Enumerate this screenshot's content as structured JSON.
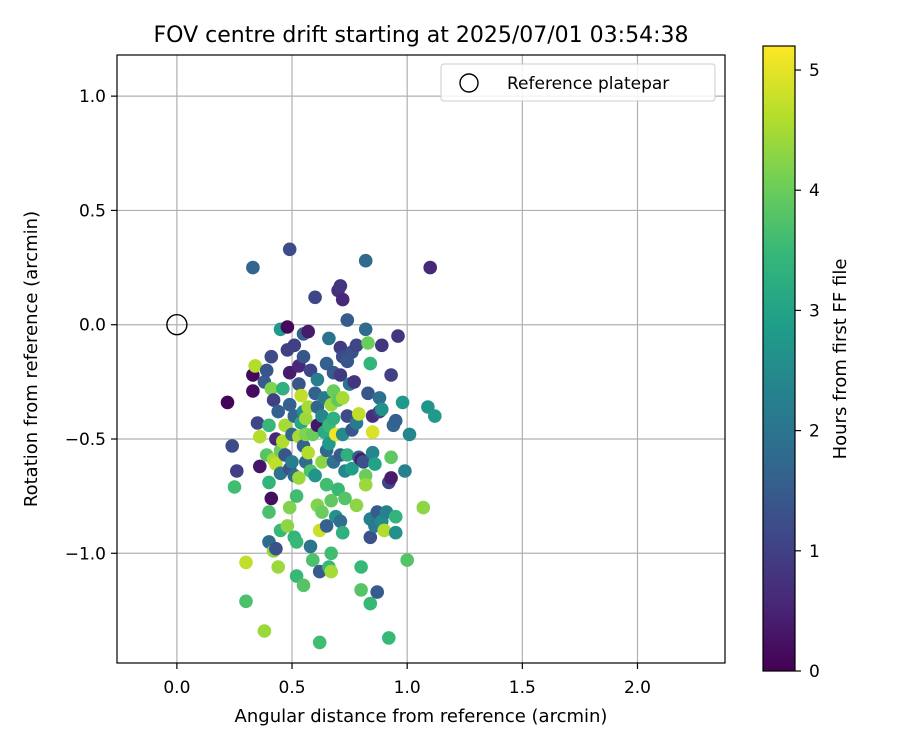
{
  "chart_data": {
    "type": "scatter",
    "title": "FOV centre drift starting at 2025/07/01 03:54:38",
    "xlabel": "Angular distance from reference (arcmin)",
    "ylabel": "Rotation from reference (arcmin)",
    "xlim": [
      -0.26,
      2.38
    ],
    "ylim": [
      -1.48,
      1.18
    ],
    "x_ticks": [
      0.0,
      0.5,
      1.0,
      1.5,
      2.0
    ],
    "x_tick_labels": [
      "0.0",
      "0.5",
      "1.0",
      "1.5",
      "2.0"
    ],
    "y_ticks": [
      -1.0,
      -0.5,
      0.0,
      0.5,
      1.0
    ],
    "y_tick_labels": [
      "−1.0",
      "−0.5",
      "0.0",
      "0.5",
      "1.0"
    ],
    "grid": true,
    "legend": {
      "position": "top-right",
      "entries": [
        {
          "label": "Reference platepar",
          "marker": "open-circle"
        }
      ]
    },
    "reference_point": {
      "x": 0.0,
      "y": 0.0
    },
    "colorbar": {
      "label": "Hours from first FF file",
      "colormap": "viridis",
      "range": [
        0,
        5.2
      ],
      "ticks": [
        0,
        1,
        2,
        3,
        4,
        5
      ],
      "tick_labels": [
        "0",
        "1",
        "2",
        "3",
        "4",
        "5"
      ],
      "colors": [
        "#440154",
        "#482878",
        "#3e4989",
        "#31688e",
        "#26828e",
        "#1f9e89",
        "#35b779",
        "#6ece58",
        "#b5de2b",
        "#fde725"
      ]
    },
    "points": [
      {
        "x": 0.22,
        "y": -0.34,
        "c": 0.05
      },
      {
        "x": 0.24,
        "y": -0.53,
        "c": 1.2
      },
      {
        "x": 0.26,
        "y": -0.64,
        "c": 1.0
      },
      {
        "x": 0.25,
        "y": -0.71,
        "c": 3.6
      },
      {
        "x": 0.3,
        "y": -1.04,
        "c": 4.7
      },
      {
        "x": 0.3,
        "y": -1.21,
        "c": 3.7
      },
      {
        "x": 0.33,
        "y": 0.25,
        "c": 1.7
      },
      {
        "x": 0.33,
        "y": -0.22,
        "c": 0.1
      },
      {
        "x": 0.33,
        "y": -0.29,
        "c": 0.15
      },
      {
        "x": 0.34,
        "y": -0.18,
        "c": 4.6
      },
      {
        "x": 0.35,
        "y": -0.43,
        "c": 1.1
      },
      {
        "x": 0.36,
        "y": -0.49,
        "c": 4.6
      },
      {
        "x": 0.36,
        "y": -0.62,
        "c": 0.3
      },
      {
        "x": 0.38,
        "y": -1.34,
        "c": 4.4
      },
      {
        "x": 0.38,
        "y": -0.25,
        "c": 1.5
      },
      {
        "x": 0.39,
        "y": -0.2,
        "c": 1.4
      },
      {
        "x": 0.39,
        "y": -0.57,
        "c": 3.8
      },
      {
        "x": 0.4,
        "y": -0.44,
        "c": 3.5
      },
      {
        "x": 0.4,
        "y": -0.69,
        "c": 3.4
      },
      {
        "x": 0.4,
        "y": -0.82,
        "c": 3.7
      },
      {
        "x": 0.4,
        "y": -0.95,
        "c": 1.8
      },
      {
        "x": 0.41,
        "y": -0.14,
        "c": 1.2
      },
      {
        "x": 0.41,
        "y": -0.28,
        "c": 4.2
      },
      {
        "x": 0.41,
        "y": -0.76,
        "c": 0.2
      },
      {
        "x": 0.42,
        "y": -0.33,
        "c": 1.0
      },
      {
        "x": 0.42,
        "y": -0.59,
        "c": 4.5
      },
      {
        "x": 0.42,
        "y": -0.99,
        "c": 4.3
      },
      {
        "x": 0.43,
        "y": -0.5,
        "c": 0.6
      },
      {
        "x": 0.43,
        "y": -0.61,
        "c": 4.7
      },
      {
        "x": 0.43,
        "y": -0.98,
        "c": 1.3
      },
      {
        "x": 0.44,
        "y": -0.38,
        "c": 1.6
      },
      {
        "x": 0.44,
        "y": -1.06,
        "c": 4.4
      },
      {
        "x": 0.45,
        "y": -0.02,
        "c": 2.8
      },
      {
        "x": 0.45,
        "y": -0.55,
        "c": 4.0
      },
      {
        "x": 0.45,
        "y": -0.65,
        "c": 2.0
      },
      {
        "x": 0.45,
        "y": -0.9,
        "c": 3.5
      },
      {
        "x": 0.46,
        "y": -0.28,
        "c": 3.3
      },
      {
        "x": 0.46,
        "y": -0.51,
        "c": 4.6
      },
      {
        "x": 0.47,
        "y": -0.44,
        "c": 4.5
      },
      {
        "x": 0.47,
        "y": -0.57,
        "c": 1.4
      },
      {
        "x": 0.48,
        "y": -0.01,
        "c": 0.1
      },
      {
        "x": 0.48,
        "y": -0.11,
        "c": 1.0
      },
      {
        "x": 0.48,
        "y": -0.88,
        "c": 4.3
      },
      {
        "x": 0.49,
        "y": 0.33,
        "c": 1.2
      },
      {
        "x": 0.49,
        "y": -0.21,
        "c": 0.4
      },
      {
        "x": 0.49,
        "y": -0.35,
        "c": 1.6
      },
      {
        "x": 0.49,
        "y": -0.63,
        "c": 1.3
      },
      {
        "x": 0.49,
        "y": -0.8,
        "c": 4.2
      },
      {
        "x": 0.5,
        "y": -0.48,
        "c": 1.7
      },
      {
        "x": 0.5,
        "y": -0.6,
        "c": 2.2
      },
      {
        "x": 0.51,
        "y": -0.09,
        "c": 1.0
      },
      {
        "x": 0.51,
        "y": -0.4,
        "c": 1.7
      },
      {
        "x": 0.51,
        "y": -0.66,
        "c": 1.8
      },
      {
        "x": 0.51,
        "y": -0.93,
        "c": 3.4
      },
      {
        "x": 0.52,
        "y": -0.75,
        "c": 3.6
      },
      {
        "x": 0.52,
        "y": -0.95,
        "c": 3.5
      },
      {
        "x": 0.52,
        "y": -1.1,
        "c": 3.5
      },
      {
        "x": 0.53,
        "y": -0.18,
        "c": 0.6
      },
      {
        "x": 0.53,
        "y": -0.26,
        "c": 1.4
      },
      {
        "x": 0.53,
        "y": -0.49,
        "c": 4.5
      },
      {
        "x": 0.53,
        "y": -0.67,
        "c": 4.4
      },
      {
        "x": 0.54,
        "y": -0.31,
        "c": 4.7
      },
      {
        "x": 0.54,
        "y": -0.43,
        "c": 3.1
      },
      {
        "x": 0.55,
        "y": -0.04,
        "c": 1.6
      },
      {
        "x": 0.55,
        "y": -0.14,
        "c": 1.4
      },
      {
        "x": 0.55,
        "y": -0.38,
        "c": 2.6
      },
      {
        "x": 0.55,
        "y": -0.53,
        "c": 1.6
      },
      {
        "x": 0.55,
        "y": -1.14,
        "c": 3.8
      },
      {
        "x": 0.56,
        "y": -0.41,
        "c": 4.4
      },
      {
        "x": 0.56,
        "y": -0.48,
        "c": 4.2
      },
      {
        "x": 0.56,
        "y": -0.6,
        "c": 1.8
      },
      {
        "x": 0.57,
        "y": -0.03,
        "c": 0.4
      },
      {
        "x": 0.57,
        "y": -0.36,
        "c": 4.5
      },
      {
        "x": 0.57,
        "y": -0.56,
        "c": 4.6
      },
      {
        "x": 0.58,
        "y": -0.2,
        "c": 1.1
      },
      {
        "x": 0.58,
        "y": -0.64,
        "c": 3.7
      },
      {
        "x": 0.58,
        "y": -0.97,
        "c": 2.0
      },
      {
        "x": 0.59,
        "y": -0.48,
        "c": 4.0
      },
      {
        "x": 0.59,
        "y": -1.03,
        "c": 3.7
      },
      {
        "x": 0.6,
        "y": 0.12,
        "c": 1.1
      },
      {
        "x": 0.6,
        "y": -0.3,
        "c": 1.6
      },
      {
        "x": 0.6,
        "y": -0.66,
        "c": 2.7
      },
      {
        "x": 0.61,
        "y": -0.24,
        "c": 2.2
      },
      {
        "x": 0.61,
        "y": -0.36,
        "c": 1.7
      },
      {
        "x": 0.61,
        "y": -0.44,
        "c": 0.3
      },
      {
        "x": 0.61,
        "y": -0.79,
        "c": 4.2
      },
      {
        "x": 0.62,
        "y": -0.9,
        "c": 4.8
      },
      {
        "x": 0.62,
        "y": -1.08,
        "c": 1.5
      },
      {
        "x": 0.62,
        "y": -1.39,
        "c": 3.6
      },
      {
        "x": 0.63,
        "y": -0.4,
        "c": 2.4
      },
      {
        "x": 0.63,
        "y": -0.6,
        "c": 4.3
      },
      {
        "x": 0.63,
        "y": -0.82,
        "c": 4.0
      },
      {
        "x": 0.64,
        "y": -0.32,
        "c": 2.1
      },
      {
        "x": 0.64,
        "y": -0.47,
        "c": 3.2
      },
      {
        "x": 0.65,
        "y": -0.17,
        "c": 1.6
      },
      {
        "x": 0.65,
        "y": -0.55,
        "c": 1.8
      },
      {
        "x": 0.65,
        "y": -0.7,
        "c": 3.6
      },
      {
        "x": 0.65,
        "y": -0.88,
        "c": 1.6
      },
      {
        "x": 0.66,
        "y": -0.06,
        "c": 2.0
      },
      {
        "x": 0.66,
        "y": -0.44,
        "c": 3.5
      },
      {
        "x": 0.66,
        "y": -0.52,
        "c": 2.8
      },
      {
        "x": 0.66,
        "y": -1.06,
        "c": 3.5
      },
      {
        "x": 0.67,
        "y": -0.35,
        "c": 4.4
      },
      {
        "x": 0.67,
        "y": -0.77,
        "c": 3.9
      },
      {
        "x": 0.67,
        "y": -1.0,
        "c": 3.6
      },
      {
        "x": 0.67,
        "y": -1.08,
        "c": 4.5
      },
      {
        "x": 0.68,
        "y": -0.21,
        "c": 1.5
      },
      {
        "x": 0.68,
        "y": -0.29,
        "c": 4.0
      },
      {
        "x": 0.68,
        "y": -0.41,
        "c": 3.3
      },
      {
        "x": 0.68,
        "y": -0.6,
        "c": 1.9
      },
      {
        "x": 0.69,
        "y": -0.48,
        "c": 5.1
      },
      {
        "x": 0.69,
        "y": -0.84,
        "c": 2.6
      },
      {
        "x": 0.7,
        "y": 0.15,
        "c": 0.7
      },
      {
        "x": 0.7,
        "y": -0.33,
        "c": 3.9
      },
      {
        "x": 0.7,
        "y": -0.72,
        "c": 3.5
      },
      {
        "x": 0.71,
        "y": 0.17,
        "c": 0.8
      },
      {
        "x": 0.71,
        "y": -0.1,
        "c": 0.9
      },
      {
        "x": 0.71,
        "y": -0.22,
        "c": 0.9
      },
      {
        "x": 0.71,
        "y": -0.57,
        "c": 1.5
      },
      {
        "x": 0.71,
        "y": -0.86,
        "c": 1.9
      },
      {
        "x": 0.72,
        "y": 0.11,
        "c": 0.6
      },
      {
        "x": 0.72,
        "y": -0.14,
        "c": 1.2
      },
      {
        "x": 0.72,
        "y": -0.32,
        "c": 4.5
      },
      {
        "x": 0.72,
        "y": -0.48,
        "c": 2.5
      },
      {
        "x": 0.72,
        "y": -0.91,
        "c": 3.3
      },
      {
        "x": 0.73,
        "y": -0.64,
        "c": 2.4
      },
      {
        "x": 0.73,
        "y": -0.76,
        "c": 3.8
      },
      {
        "x": 0.74,
        "y": 0.02,
        "c": 1.5
      },
      {
        "x": 0.74,
        "y": -0.16,
        "c": 1.4
      },
      {
        "x": 0.74,
        "y": -0.4,
        "c": 1.2
      },
      {
        "x": 0.74,
        "y": -0.57,
        "c": 3.3
      },
      {
        "x": 0.75,
        "y": -0.26,
        "c": 2.0
      },
      {
        "x": 0.76,
        "y": -0.12,
        "c": 1.3
      },
      {
        "x": 0.76,
        "y": -0.46,
        "c": 1.4
      },
      {
        "x": 0.76,
        "y": -0.63,
        "c": 2.9
      },
      {
        "x": 0.77,
        "y": -0.25,
        "c": 0.8
      },
      {
        "x": 0.78,
        "y": -0.09,
        "c": 1.1
      },
      {
        "x": 0.78,
        "y": -0.43,
        "c": 2.1
      },
      {
        "x": 0.78,
        "y": -0.79,
        "c": 4.3
      },
      {
        "x": 0.79,
        "y": -0.39,
        "c": 4.7
      },
      {
        "x": 0.79,
        "y": -0.58,
        "c": 1.6
      },
      {
        "x": 0.8,
        "y": -0.59,
        "c": 0.4
      },
      {
        "x": 0.8,
        "y": -1.06,
        "c": 3.5
      },
      {
        "x": 0.8,
        "y": -1.16,
        "c": 3.8
      },
      {
        "x": 0.81,
        "y": -0.6,
        "c": 1.3
      },
      {
        "x": 0.82,
        "y": 0.28,
        "c": 1.8
      },
      {
        "x": 0.82,
        "y": -0.02,
        "c": 1.8
      },
      {
        "x": 0.82,
        "y": -0.66,
        "c": 4.0
      },
      {
        "x": 0.82,
        "y": -0.7,
        "c": 4.4
      },
      {
        "x": 0.83,
        "y": -0.08,
        "c": 4.0
      },
      {
        "x": 0.83,
        "y": -0.3,
        "c": 1.4
      },
      {
        "x": 0.84,
        "y": -0.17,
        "c": 3.4
      },
      {
        "x": 0.84,
        "y": -0.85,
        "c": 2.3
      },
      {
        "x": 0.84,
        "y": -0.93,
        "c": 1.3
      },
      {
        "x": 0.84,
        "y": -1.22,
        "c": 3.5
      },
      {
        "x": 0.85,
        "y": -0.4,
        "c": 0.7
      },
      {
        "x": 0.85,
        "y": -0.47,
        "c": 4.9
      },
      {
        "x": 0.85,
        "y": -0.56,
        "c": 2.4
      },
      {
        "x": 0.86,
        "y": -0.61,
        "c": 3.0
      },
      {
        "x": 0.86,
        "y": -0.88,
        "c": 2.1
      },
      {
        "x": 0.87,
        "y": -0.82,
        "c": 1.5
      },
      {
        "x": 0.87,
        "y": -1.17,
        "c": 1.5
      },
      {
        "x": 0.88,
        "y": -0.38,
        "c": 1.0
      },
      {
        "x": 0.88,
        "y": -0.32,
        "c": 1.9
      },
      {
        "x": 0.89,
        "y": -0.09,
        "c": 0.8
      },
      {
        "x": 0.89,
        "y": -0.37,
        "c": 2.6
      },
      {
        "x": 0.89,
        "y": -0.86,
        "c": 2.5
      },
      {
        "x": 0.9,
        "y": -0.9,
        "c": 4.6
      },
      {
        "x": 0.91,
        "y": -0.82,
        "c": 2.3
      },
      {
        "x": 0.92,
        "y": -0.69,
        "c": 1.1
      },
      {
        "x": 0.92,
        "y": -1.37,
        "c": 3.5
      },
      {
        "x": 0.93,
        "y": -0.22,
        "c": 1.0
      },
      {
        "x": 0.93,
        "y": -0.58,
        "c": 3.9
      },
      {
        "x": 0.93,
        "y": -0.67,
        "c": 0.4
      },
      {
        "x": 0.94,
        "y": -0.44,
        "c": 1.7
      },
      {
        "x": 0.95,
        "y": -0.42,
        "c": 1.6
      },
      {
        "x": 0.95,
        "y": -0.84,
        "c": 3.4
      },
      {
        "x": 0.95,
        "y": -0.91,
        "c": 2.6
      },
      {
        "x": 0.96,
        "y": -0.05,
        "c": 0.8
      },
      {
        "x": 0.98,
        "y": -0.34,
        "c": 2.8
      },
      {
        "x": 0.99,
        "y": -0.64,
        "c": 2.3
      },
      {
        "x": 1.0,
        "y": -1.03,
        "c": 3.8
      },
      {
        "x": 1.01,
        "y": -0.48,
        "c": 2.4
      },
      {
        "x": 1.07,
        "y": -0.8,
        "c": 4.3
      },
      {
        "x": 1.09,
        "y": -0.36,
        "c": 2.7
      },
      {
        "x": 1.1,
        "y": 0.25,
        "c": 0.6
      },
      {
        "x": 1.12,
        "y": -0.4,
        "c": 2.8
      }
    ]
  }
}
